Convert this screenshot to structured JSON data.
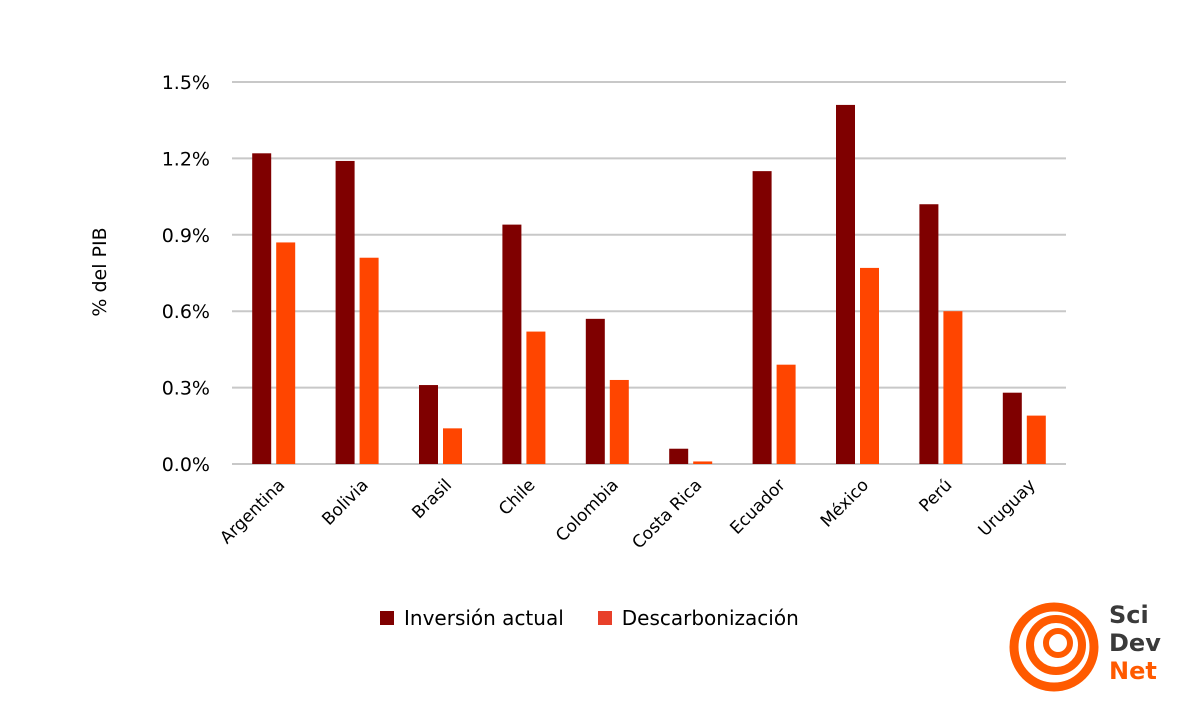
{
  "chart_data": {
    "type": "bar",
    "categories": [
      "Argentina",
      "Bolivia",
      "Brasil",
      "Chile",
      "Colombia",
      "Costa Rica",
      "Ecuador",
      "México",
      "Perú",
      "Uruguay"
    ],
    "series": [
      {
        "name": "Inversión actual",
        "color": "#7f0000",
        "values": [
          1.22,
          1.19,
          0.31,
          0.94,
          0.57,
          0.06,
          1.15,
          1.41,
          1.02,
          0.28
        ]
      },
      {
        "name": "Descarbonización",
        "color": "#ff4500",
        "values": [
          0.87,
          0.81,
          0.14,
          0.52,
          0.33,
          0.01,
          0.39,
          0.77,
          0.6,
          0.19
        ]
      }
    ],
    "ylabel": "% del PIB",
    "ylim": [
      0,
      1.5
    ],
    "yticks": [
      "0.0%",
      "0.3%",
      "0.6%",
      "0.9%",
      "1.2%",
      "1.5%"
    ],
    "grid": true,
    "legend_position": "bottom"
  },
  "logo": {
    "line1": "Sci",
    "line2": "Dev",
    "line3": "Net",
    "color_dark": "#3a3a3a",
    "color_accent": "#ff5a00"
  }
}
